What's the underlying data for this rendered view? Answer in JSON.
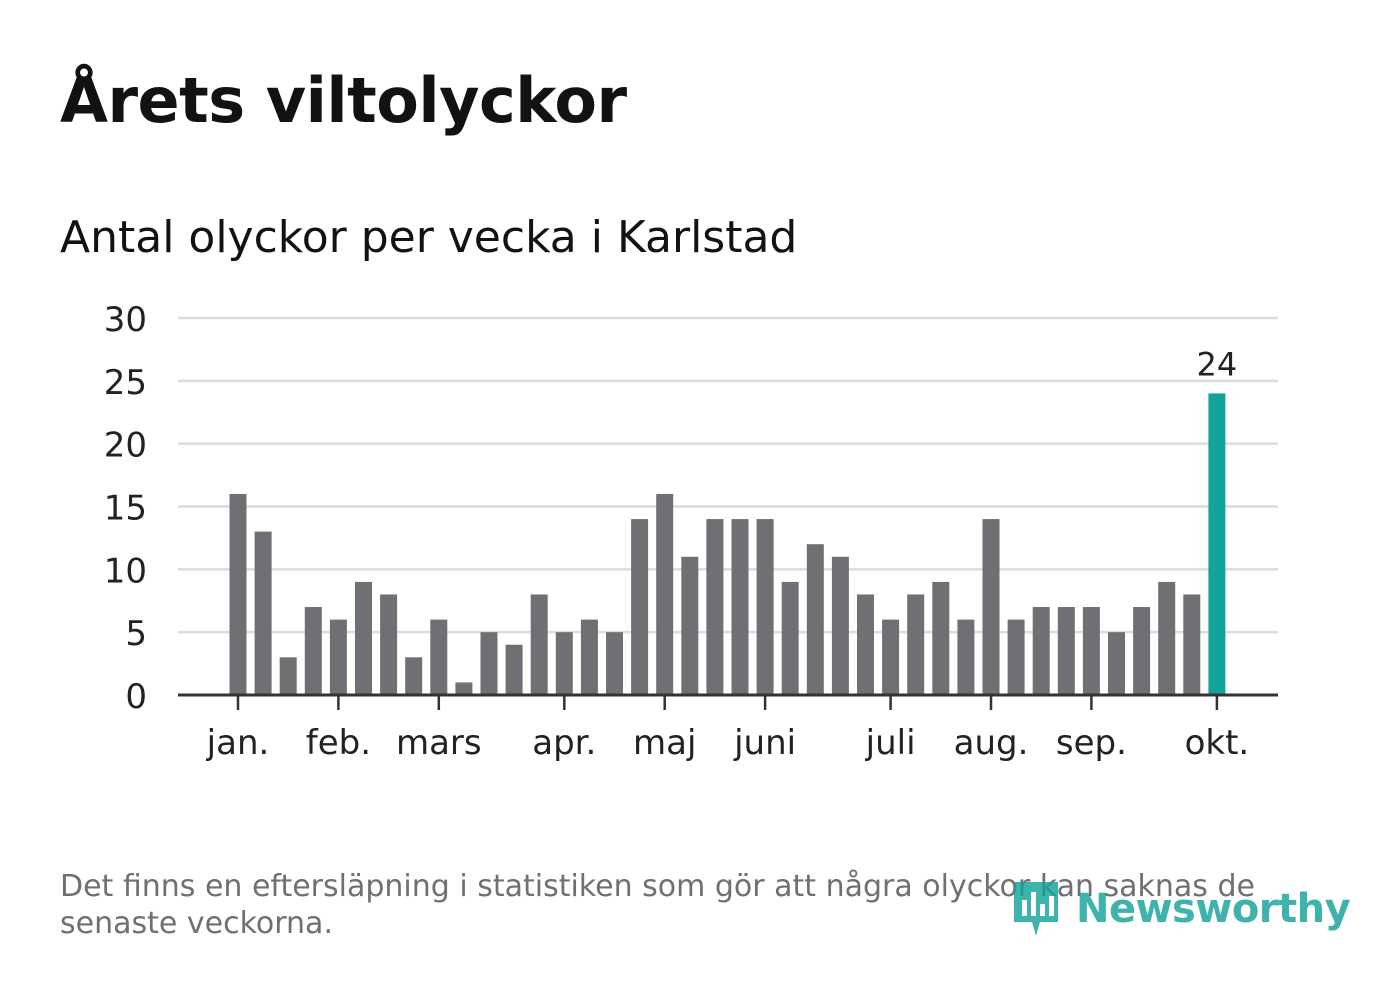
{
  "title": "Årets viltolyckor",
  "subtitle": "Antal olyckor per vecka i Karlstad",
  "footnote": "Det finns en eftersläpning i statistiken som gör att några olyckor kan saknas de senaste veckorna.",
  "brand": {
    "name": "Newsworthy",
    "icon": "bar-chart-badge-icon",
    "color": "#13a39a"
  },
  "colors": {
    "bar": "#707074",
    "highlight": "#13a39a",
    "grid": "#dcdcdc",
    "axis": "#333333",
    "text": "#222222"
  },
  "chart_data": {
    "type": "bar",
    "title": "Antal olyckor per vecka i Karlstad",
    "xlabel": "",
    "ylabel": "",
    "ylim": [
      0,
      30
    ],
    "yticks": [
      "0",
      "5",
      "10",
      "15",
      "20",
      "25",
      "30"
    ],
    "values": [
      16,
      13,
      3,
      7,
      6,
      9,
      8,
      3,
      6,
      1,
      5,
      4,
      8,
      5,
      6,
      5,
      14,
      16,
      11,
      14,
      14,
      14,
      9,
      12,
      11,
      8,
      6,
      8,
      9,
      6,
      14,
      6,
      7,
      7,
      7,
      5,
      7,
      9,
      8,
      24
    ],
    "month_labels": [
      {
        "label": "jan.",
        "week_index": 0
      },
      {
        "label": "feb.",
        "week_index": 4
      },
      {
        "label": "mars",
        "week_index": 8
      },
      {
        "label": "apr.",
        "week_index": 13
      },
      {
        "label": "maj",
        "week_index": 17
      },
      {
        "label": "juni",
        "week_index": 21
      },
      {
        "label": "juli",
        "week_index": 26
      },
      {
        "label": "aug.",
        "week_index": 30
      },
      {
        "label": "sep.",
        "week_index": 34
      },
      {
        "label": "okt.",
        "week_index": 39
      }
    ],
    "highlight_index": 39,
    "highlight_label": "24",
    "grid": true,
    "legend": "none"
  }
}
